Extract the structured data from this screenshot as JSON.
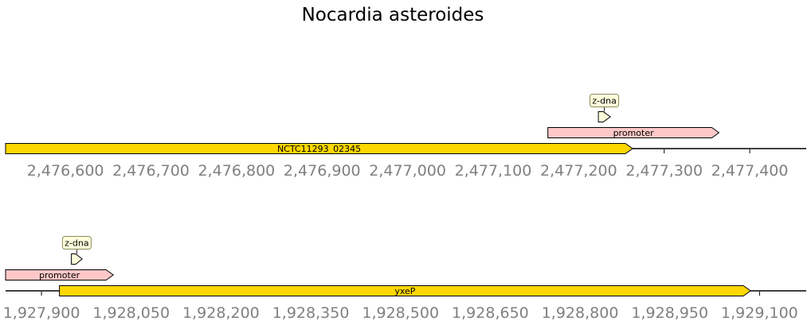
{
  "title": "Nocardia asteroides",
  "colors": {
    "gene": "#ffd700",
    "promoter": "#ffc8c8",
    "label_box": "#ffffdd",
    "label_box_border": "#8a8a5a",
    "axis_text": "#808080",
    "line": "#000000"
  },
  "chart_data": [
    {
      "type": "gene-map",
      "range": [
        2476530,
        2477466
      ],
      "ticks": [
        2476600,
        2476700,
        2476800,
        2476900,
        2477000,
        2477100,
        2477200,
        2477300,
        2477400
      ],
      "tick_labels": [
        "2,476,600",
        "2,476,700",
        "2,476,800",
        "2,476,900",
        "2,477,000",
        "2,477,100",
        "2,477,200",
        "2,477,300",
        "2,477,400"
      ],
      "features": [
        {
          "label": "NCTC11293_02345",
          "kind": "gene",
          "start": 2476530,
          "end": 2477263,
          "strand": 1,
          "level": 0,
          "label_style": "inside"
        },
        {
          "label": "promoter",
          "kind": "promoter",
          "start": 2477164,
          "end": 2477364,
          "strand": 1,
          "level": 1,
          "label_style": "inside"
        },
        {
          "label": "z-dna",
          "kind": "z-dna",
          "start": 2477223,
          "end": 2477237,
          "strand": 1,
          "level": 2,
          "label_style": "box"
        }
      ]
    },
    {
      "type": "gene-map",
      "range": [
        1927840,
        1929178
      ],
      "ticks": [
        1927900,
        1928050,
        1928200,
        1928350,
        1928500,
        1928650,
        1928800,
        1928950,
        1929100
      ],
      "tick_labels": [
        "1,927,900",
        "1,928,050",
        "1,928,200",
        "1,928,350",
        "1,928,500",
        "1,928,650",
        "1,928,800",
        "1,928,950",
        "1,929,100"
      ],
      "features": [
        {
          "label": "yxeP",
          "kind": "gene",
          "start": 1927930,
          "end": 1929085,
          "strand": 1,
          "level": 0,
          "label_style": "inside"
        },
        {
          "label": "promoter",
          "kind": "promoter",
          "start": 1927840,
          "end": 1928020,
          "strand": 1,
          "level": 1,
          "label_style": "inside"
        },
        {
          "label": "z-dna",
          "kind": "z-dna",
          "start": 1927950,
          "end": 1927968,
          "strand": 1,
          "level": 2,
          "label_style": "box"
        }
      ]
    }
  ]
}
